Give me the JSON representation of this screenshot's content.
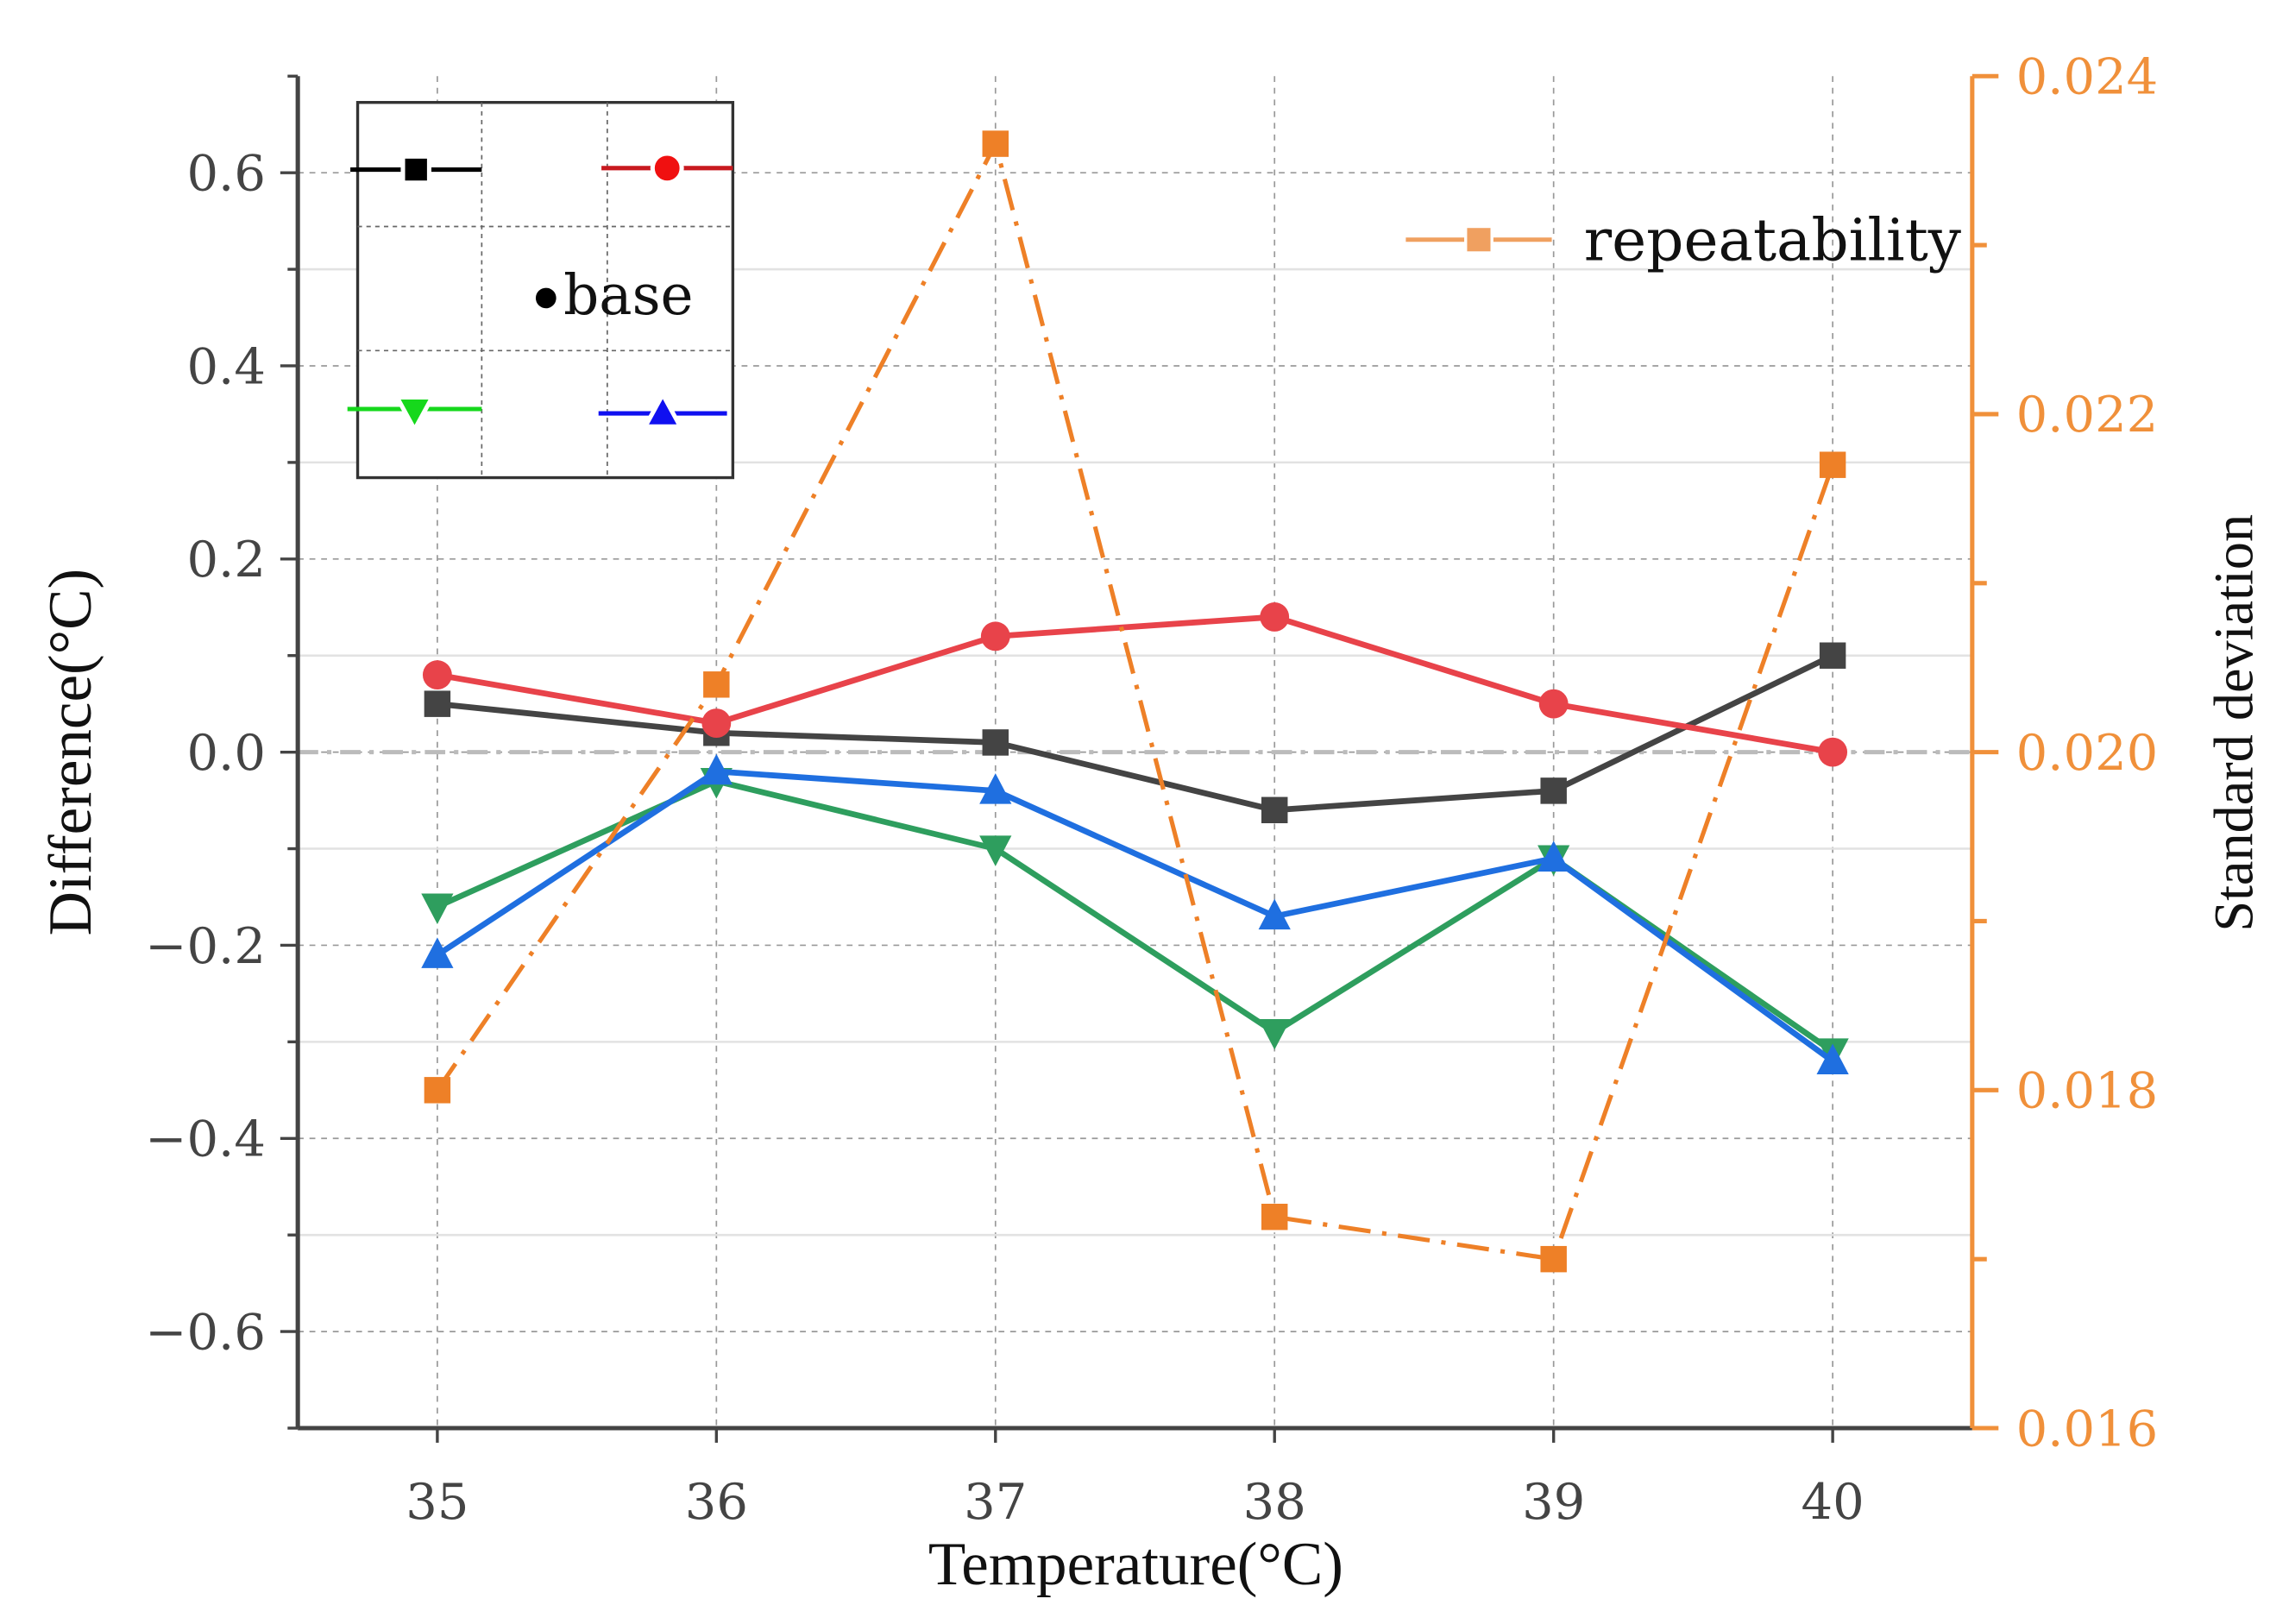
{
  "chart_data": {
    "type": "line",
    "title": "",
    "xlabel": "Temperature(°C)",
    "ylabel": "Difference(°C)",
    "y2label": "Standard deviation",
    "x": [
      35,
      36,
      37,
      38,
      39,
      40
    ],
    "xlim": [
      34.5,
      40.5
    ],
    "ylim": [
      -0.7,
      0.7
    ],
    "y2lim": [
      0.016,
      0.024
    ],
    "xticks": [
      "35",
      "36",
      "37",
      "38",
      "39",
      "40"
    ],
    "yticks": [
      {
        "v": 0.6,
        "label": "0.6"
      },
      {
        "v": 0.4,
        "label": "0.4"
      },
      {
        "v": 0.2,
        "label": "0.2"
      },
      {
        "v": 0.0,
        "label": "0.0"
      },
      {
        "v": -0.2,
        "label": "−0.2"
      },
      {
        "v": -0.4,
        "label": "−0.4"
      },
      {
        "v": -0.6,
        "label": "−0.6"
      }
    ],
    "y2ticks": [
      {
        "v": 0.024,
        "label": "0.024"
      },
      {
        "v": 0.022,
        "label": "0.022"
      },
      {
        "v": 0.02,
        "label": "0.020"
      },
      {
        "v": 0.018,
        "label": "0.018"
      },
      {
        "v": 0.016,
        "label": "0.016"
      }
    ],
    "grid": true,
    "series": [
      {
        "name": "black-square",
        "marker": "square",
        "color": "#444444",
        "legend_color": "#000000",
        "axis": "left",
        "values": [
          0.05,
          0.02,
          0.01,
          -0.06,
          -0.04,
          0.1
        ]
      },
      {
        "name": "red-circle",
        "marker": "circle",
        "color": "#e8434a",
        "legend_color": "#e8191f",
        "axis": "left",
        "values": [
          0.08,
          0.03,
          0.12,
          0.14,
          0.05,
          0.0
        ]
      },
      {
        "name": "green-down-triangle",
        "marker": "tri-down",
        "color": "#2e9e5e",
        "legend_color": "#16d81c",
        "axis": "left",
        "values": [
          -0.16,
          -0.03,
          -0.1,
          -0.29,
          -0.11,
          -0.31
        ]
      },
      {
        "name": "blue-up-triangle",
        "marker": "tri-up",
        "color": "#1f6fe0",
        "legend_color": "#1010f0",
        "axis": "left",
        "values": [
          -0.21,
          -0.02,
          -0.04,
          -0.17,
          -0.11,
          -0.32
        ]
      },
      {
        "name": "repeatability",
        "marker": "square",
        "color": "#ee8027",
        "axis": "right",
        "dash": "dashdot",
        "values": [
          0.018,
          0.0204,
          0.0236,
          0.01725,
          0.017,
          0.0217
        ]
      }
    ],
    "legend": {
      "placement": "top-left",
      "base_label": "base",
      "repeatability_label": "repeatability"
    },
    "reference_line": 0.0
  }
}
